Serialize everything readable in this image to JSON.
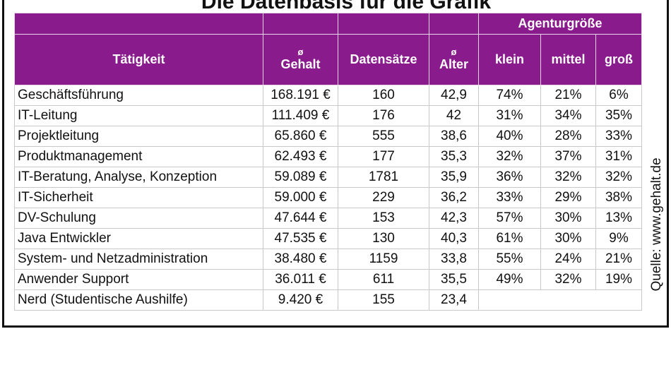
{
  "header": {
    "title": "Die Datenbasis für die Grafik",
    "group": "Agenturgröße",
    "columns": [
      {
        "label": "Tätigkeit"
      },
      {
        "symbol": "ø",
        "label": "Gehalt"
      },
      {
        "label": "Datensätze"
      },
      {
        "symbol": "ø",
        "label": "Alter"
      },
      {
        "label": "klein"
      },
      {
        "label": "mittel"
      },
      {
        "label": "groß"
      }
    ]
  },
  "table": {
    "rows": [
      [
        "Geschäftsführung",
        "168.191 €",
        "160",
        "42,9",
        "74%",
        "21%",
        "6%"
      ],
      [
        "IT-Leitung",
        "111.409 €",
        "176",
        "42",
        "31%",
        "34%",
        "35%"
      ],
      [
        "Projektleitung",
        "65.860 €",
        "555",
        "38,6",
        "40%",
        "28%",
        "33%"
      ],
      [
        "Produktmanagement",
        "62.493 €",
        "177",
        "35,3",
        "32%",
        "37%",
        "31%"
      ],
      [
        "IT-Beratung, Analyse, Konzeption",
        "59.089 €",
        "1781",
        "35,9",
        "36%",
        "32%",
        "32%"
      ],
      [
        "IT-Sicherheit",
        "59.000 €",
        "229",
        "36,2",
        "33%",
        "29%",
        "38%"
      ],
      [
        "DV-Schulung",
        "47.644 €",
        "153",
        "42,3",
        "57%",
        "30%",
        "13%"
      ],
      [
        "Java Entwickler",
        "47.535 €",
        "130",
        "40,3",
        "61%",
        "30%",
        "9%"
      ],
      [
        "System- und Netzadministration",
        "38.480 €",
        "1159",
        "33,8",
        "55%",
        "24%",
        "21%"
      ],
      [
        "Anwender Support",
        "36.011 €",
        "611",
        "35,5",
        "49%",
        "32%",
        "19%"
      ],
      [
        "Nerd (Studentische Aushilfe)",
        "9.420 €",
        "155",
        "23,4"
      ]
    ]
  },
  "source": "Quelle: www.gehalt.de"
}
